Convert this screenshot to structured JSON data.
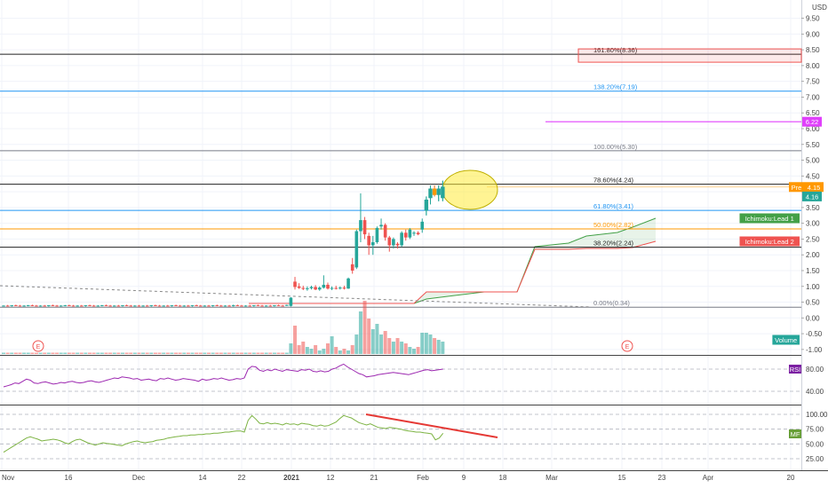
{
  "chart_data": [
    {
      "type": "candlestick",
      "currency": "USD",
      "price_axis_ticks": [
        "9.50",
        "9.00",
        "8.50",
        "8.00",
        "7.50",
        "7.00",
        "6.50",
        "6.00",
        "5.50",
        "5.00",
        "4.50",
        "4.00",
        "3.50",
        "3.00",
        "2.50",
        "2.00",
        "1.50",
        "1.00",
        "0.50",
        "0.00",
        "-0.50",
        "-1.00"
      ],
      "time_axis_ticks": [
        "Nov",
        "16",
        "Dec",
        "14",
        "22",
        "2021",
        "12",
        "21",
        "Feb",
        "9",
        "18",
        "Mar",
        "15",
        "23",
        "Apr",
        "20"
      ],
      "fib_levels": [
        {
          "label": "161.80%(8.36)",
          "value": 8.36,
          "color": "#222222"
        },
        {
          "label": "138.20%(7.19)",
          "value": 7.19,
          "color": "#2196f3"
        },
        {
          "label": "100.00%(5.30)",
          "value": 5.3,
          "color": "#787b86"
        },
        {
          "label": "78.60%(4.24)",
          "value": 4.24,
          "color": "#222222"
        },
        {
          "label": "61.80%(3.41)",
          "value": 3.41,
          "color": "#2196f3"
        },
        {
          "label": "50.00%(2.82)",
          "value": 2.82,
          "color": "#ff9800"
        },
        {
          "label": "38.20%(2.24)",
          "value": 2.24,
          "color": "#222222"
        },
        {
          "label": "0.00%(0.34)",
          "value": 0.34,
          "color": "#787b86"
        }
      ],
      "price_tags": [
        {
          "label": "6.22",
          "value": 6.22,
          "color": "#e040fb"
        },
        {
          "label": "Pre",
          "value": 4.15,
          "color": "#ff9800"
        },
        {
          "label": "4.15",
          "value": 4.15,
          "color": "#ff9800"
        },
        {
          "label": "4.16",
          "value": 4.16,
          "color": "#26a69a"
        }
      ],
      "indicator_tags": [
        {
          "label": "Ichimoku:Lead 1",
          "color": "#43a047"
        },
        {
          "label": "Ichimoku:Lead 2",
          "color": "#ef5350"
        },
        {
          "label": "Volume",
          "color": "#26a69a"
        }
      ],
      "earnings_markers": [
        "E",
        "E"
      ],
      "candles": [
        [
          0.38,
          0.4,
          0.36,
          0.39
        ],
        [
          0.39,
          0.41,
          0.37,
          0.38
        ],
        [
          0.38,
          0.4,
          0.36,
          0.4
        ],
        [
          0.4,
          0.42,
          0.38,
          0.39
        ],
        [
          0.39,
          0.41,
          0.37,
          0.38
        ],
        [
          0.38,
          0.4,
          0.36,
          0.39
        ],
        [
          0.39,
          0.41,
          0.37,
          0.4
        ],
        [
          0.4,
          0.42,
          0.38,
          0.39
        ],
        [
          0.39,
          0.41,
          0.37,
          0.38
        ],
        [
          0.38,
          0.4,
          0.36,
          0.39
        ],
        [
          0.39,
          0.41,
          0.37,
          0.38
        ],
        [
          0.38,
          0.4,
          0.36,
          0.4
        ],
        [
          0.4,
          0.42,
          0.38,
          0.39
        ],
        [
          0.39,
          0.41,
          0.37,
          0.38
        ],
        [
          0.38,
          0.4,
          0.36,
          0.39
        ],
        [
          0.39,
          0.41,
          0.37,
          0.4
        ],
        [
          0.4,
          0.42,
          0.38,
          0.39
        ],
        [
          0.39,
          0.41,
          0.37,
          0.38
        ],
        [
          0.38,
          0.4,
          0.36,
          0.39
        ],
        [
          0.39,
          0.41,
          0.37,
          0.38
        ],
        [
          0.38,
          0.4,
          0.36,
          0.4
        ],
        [
          0.4,
          0.42,
          0.38,
          0.39
        ],
        [
          0.39,
          0.41,
          0.37,
          0.38
        ],
        [
          0.38,
          0.4,
          0.36,
          0.39
        ],
        [
          0.39,
          0.41,
          0.37,
          0.4
        ],
        [
          0.4,
          0.42,
          0.38,
          0.39
        ],
        [
          0.39,
          0.41,
          0.37,
          0.38
        ],
        [
          0.38,
          0.4,
          0.36,
          0.39
        ],
        [
          0.39,
          0.41,
          0.37,
          0.38
        ],
        [
          0.38,
          0.4,
          0.36,
          0.4
        ],
        [
          0.4,
          0.42,
          0.38,
          0.39
        ],
        [
          0.39,
          0.41,
          0.37,
          0.38
        ],
        [
          0.38,
          0.4,
          0.36,
          0.39
        ],
        [
          0.39,
          0.41,
          0.37,
          0.38
        ],
        [
          0.38,
          0.4,
          0.36,
          0.39
        ],
        [
          0.39,
          0.41,
          0.37,
          0.38
        ],
        [
          0.38,
          0.4,
          0.36,
          0.4
        ],
        [
          0.4,
          0.42,
          0.38,
          0.39
        ],
        [
          0.39,
          0.41,
          0.37,
          0.38
        ],
        [
          0.38,
          0.4,
          0.36,
          0.39
        ],
        [
          0.39,
          0.41,
          0.37,
          0.38
        ],
        [
          0.38,
          0.4,
          0.36,
          0.4
        ],
        [
          0.4,
          0.42,
          0.38,
          0.39
        ],
        [
          0.39,
          0.41,
          0.37,
          0.38
        ],
        [
          0.38,
          0.4,
          0.36,
          0.39
        ],
        [
          0.39,
          0.41,
          0.37,
          0.38
        ],
        [
          0.38,
          0.4,
          0.36,
          0.4
        ],
        [
          0.4,
          0.42,
          0.38,
          0.39
        ],
        [
          0.39,
          0.41,
          0.37,
          0.38
        ],
        [
          0.38,
          0.4,
          0.36,
          0.39
        ],
        [
          0.39,
          0.41,
          0.37,
          0.38
        ],
        [
          0.38,
          0.4,
          0.36,
          0.4
        ],
        [
          0.4,
          0.42,
          0.38,
          0.39
        ],
        [
          0.39,
          0.41,
          0.37,
          0.38
        ],
        [
          0.38,
          0.4,
          0.36,
          0.39
        ],
        [
          0.39,
          0.41,
          0.37,
          0.38
        ],
        [
          0.38,
          0.42,
          0.36,
          0.4
        ],
        [
          0.4,
          0.42,
          0.38,
          0.39
        ],
        [
          0.39,
          0.41,
          0.37,
          0.38
        ],
        [
          0.38,
          0.4,
          0.36,
          0.39
        ],
        [
          0.39,
          0.41,
          0.37,
          0.38
        ],
        [
          0.38,
          0.4,
          0.36,
          0.4
        ],
        [
          0.4,
          0.42,
          0.38,
          0.39
        ],
        [
          0.39,
          0.41,
          0.37,
          0.38
        ],
        [
          0.38,
          0.4,
          0.36,
          0.39
        ],
        [
          0.39,
          0.41,
          0.37,
          0.38
        ],
        [
          0.38,
          0.4,
          0.36,
          0.4
        ],
        [
          0.4,
          0.42,
          0.38,
          0.39
        ],
        [
          0.39,
          0.41,
          0.37,
          0.38
        ],
        [
          0.4,
          0.42,
          0.38,
          0.41
        ],
        [
          0.38,
          0.66,
          0.36,
          0.64
        ],
        [
          1.15,
          1.3,
          0.9,
          0.98
        ],
        [
          1.0,
          1.1,
          0.92,
          0.95
        ],
        [
          0.95,
          1.02,
          0.88,
          0.92
        ],
        [
          0.92,
          1.0,
          0.86,
          0.94
        ],
        [
          0.94,
          1.02,
          0.9,
          0.98
        ],
        [
          0.98,
          1.04,
          0.88,
          0.9
        ],
        [
          0.9,
          1.0,
          0.86,
          0.96
        ],
        [
          0.96,
          1.35,
          0.93,
          1.05
        ],
        [
          1.05,
          1.12,
          0.9,
          0.93
        ],
        [
          0.93,
          1.0,
          0.88,
          0.95
        ],
        [
          0.95,
          1.02,
          0.9,
          0.94
        ],
        [
          0.94,
          1.0,
          0.9,
          0.96
        ],
        [
          0.96,
          1.02,
          0.9,
          0.93
        ],
        [
          0.93,
          1.28,
          0.92,
          1.25
        ],
        [
          1.7,
          1.9,
          1.4,
          1.5
        ],
        [
          1.6,
          2.8,
          1.55,
          2.75
        ],
        [
          2.75,
          3.95,
          2.4,
          3.1
        ],
        [
          3.1,
          3.2,
          2.5,
          2.65
        ],
        [
          2.6,
          2.7,
          2.0,
          2.3
        ],
        [
          2.3,
          2.6,
          2.0,
          2.4
        ],
        [
          2.4,
          2.9,
          2.35,
          2.85
        ],
        [
          2.9,
          3.15,
          2.8,
          2.95
        ],
        [
          2.95,
          3.0,
          2.45,
          2.55
        ],
        [
          2.55,
          2.6,
          2.1,
          2.3
        ],
        [
          2.3,
          2.55,
          2.2,
          2.5
        ],
        [
          2.35,
          2.4,
          2.2,
          2.3
        ],
        [
          2.3,
          2.75,
          2.25,
          2.7
        ],
        [
          2.7,
          2.8,
          2.45,
          2.55
        ],
        [
          2.55,
          2.85,
          2.5,
          2.8
        ],
        [
          2.7,
          2.75,
          2.6,
          2.7
        ],
        [
          2.7,
          2.75,
          2.62,
          2.65
        ],
        [
          2.8,
          3.15,
          2.7,
          3.05
        ],
        [
          3.4,
          3.85,
          3.25,
          3.75
        ],
        [
          3.8,
          4.2,
          3.6,
          4.1
        ],
        [
          4.1,
          4.2,
          3.85,
          3.9
        ],
        [
          3.9,
          4.2,
          3.7,
          4.1
        ],
        [
          3.8,
          4.35,
          3.7,
          4.16
        ]
      ]
    },
    {
      "type": "line",
      "name": "RSI",
      "axis_ticks": [
        "80.00",
        "40.00"
      ],
      "values": [
        48,
        50,
        52,
        55,
        54,
        58,
        62,
        60,
        55,
        54,
        56,
        57,
        55,
        53,
        54,
        56,
        55,
        57,
        58,
        56,
        55,
        56,
        58,
        59,
        57,
        56,
        58,
        60,
        62,
        64,
        63,
        66,
        65,
        64,
        62,
        63,
        60,
        61,
        62,
        60,
        59,
        63,
        62,
        64,
        62,
        60,
        61,
        63,
        62,
        61,
        60,
        58,
        62,
        60,
        61,
        63,
        62,
        64,
        62,
        60,
        61,
        63,
        62,
        64,
        80,
        85,
        84,
        78,
        76,
        79,
        77,
        80,
        78,
        76,
        79,
        78,
        77,
        76,
        79,
        78,
        80,
        76,
        75,
        77,
        75,
        76,
        80,
        82,
        86,
        89,
        84,
        80,
        76,
        72,
        70,
        66,
        67,
        68,
        70,
        71,
        72,
        73,
        74,
        73,
        72,
        71,
        70,
        72,
        74,
        76,
        78,
        79,
        77,
        78,
        79,
        80
      ]
    },
    {
      "type": "line",
      "name": "MF",
      "axis_ticks": [
        "100.00",
        "75.00",
        "50.00",
        "25.00"
      ],
      "values": [
        36,
        40,
        44,
        48,
        52,
        56,
        60,
        62,
        60,
        58,
        55,
        56,
        57,
        58,
        57,
        55,
        52,
        50,
        54,
        57,
        58,
        55,
        52,
        50,
        48,
        50,
        52,
        51,
        50,
        49,
        48,
        47,
        50,
        52,
        54,
        55,
        53,
        52,
        53,
        54,
        56,
        57,
        58,
        60,
        61,
        62,
        63,
        64,
        64,
        65,
        65,
        66,
        66,
        67,
        67,
        68,
        68,
        69,
        70,
        70,
        71,
        72,
        72,
        70,
        90,
        98,
        92,
        85,
        84,
        86,
        84,
        85,
        84,
        82,
        85,
        83,
        84,
        82,
        85,
        84,
        83,
        81,
        80,
        82,
        80,
        81,
        84,
        87,
        93,
        98,
        96,
        94,
        90,
        86,
        84,
        82,
        84,
        81,
        78,
        77,
        76,
        78,
        77,
        76,
        75,
        73,
        72,
        71,
        70,
        70,
        69,
        68,
        67,
        57,
        60,
        68
      ]
    }
  ]
}
